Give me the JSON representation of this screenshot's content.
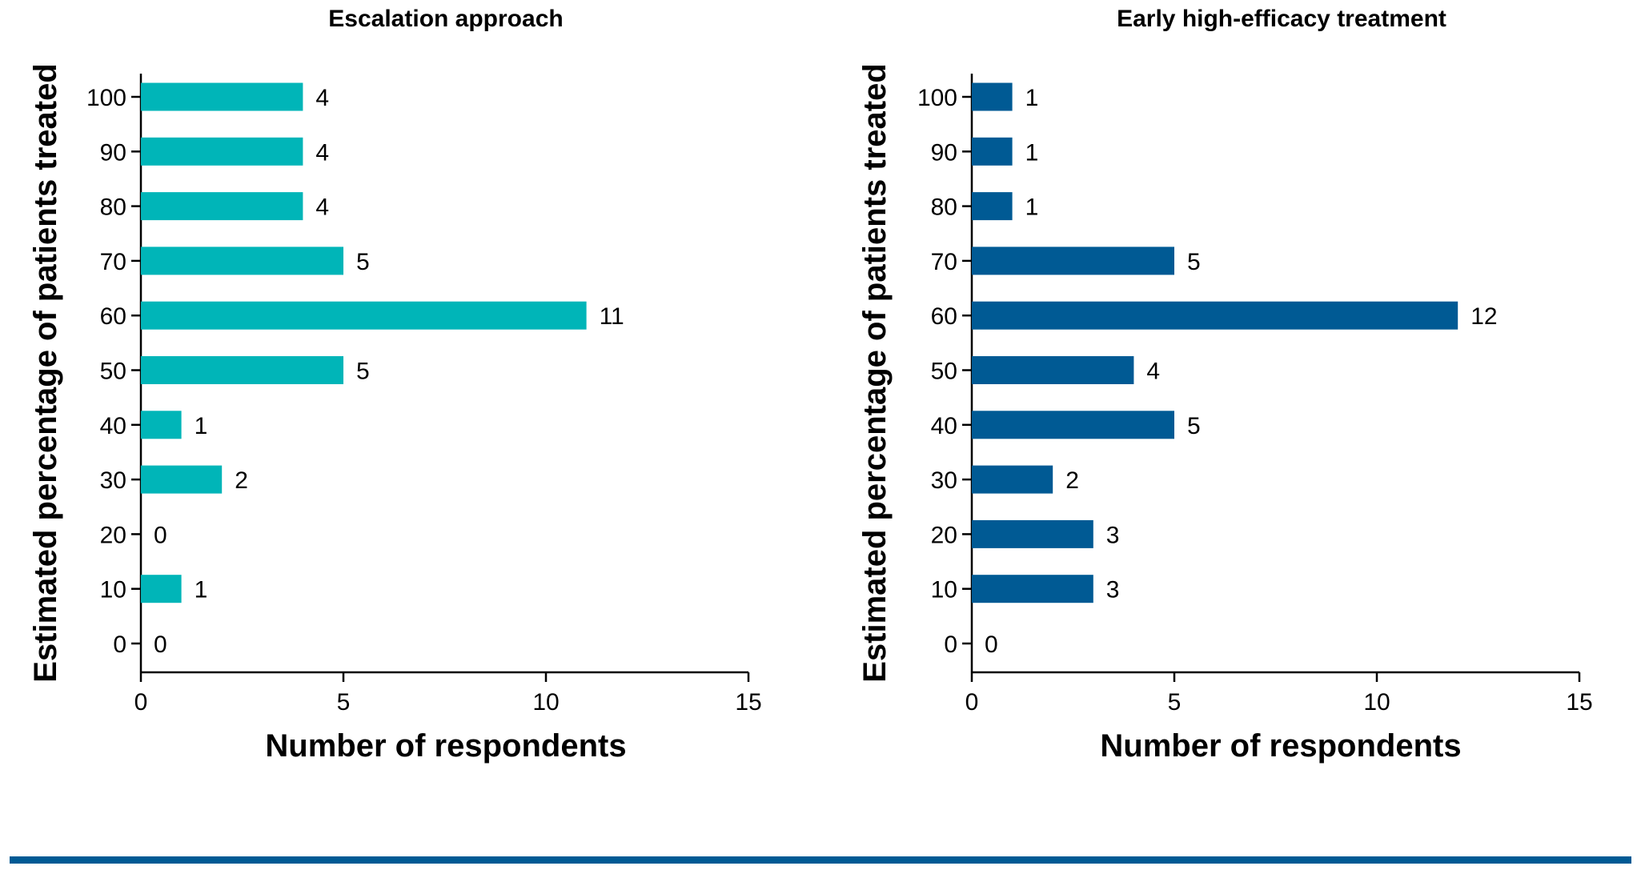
{
  "chart_data": [
    {
      "type": "bar",
      "orientation": "horizontal",
      "title": "Escalation approach",
      "xlabel": "Number of respondents",
      "ylabel": "Estimated percentage of patients treated",
      "categories": [
        "0",
        "10",
        "20",
        "30",
        "40",
        "50",
        "60",
        "70",
        "80",
        "90",
        "100"
      ],
      "values": [
        0,
        1,
        0,
        2,
        1,
        5,
        11,
        5,
        4,
        4,
        4
      ],
      "xlim": [
        0,
        15
      ],
      "xticks": [
        "0",
        "5",
        "10",
        "15"
      ],
      "color": "#00B5B8",
      "grid": false
    },
    {
      "type": "bar",
      "orientation": "horizontal",
      "title": "Early high-efficacy treatment",
      "xlabel": "Number of respondents",
      "ylabel": "Estimated percentage of patients treated",
      "categories": [
        "0",
        "10",
        "20",
        "30",
        "40",
        "50",
        "60",
        "70",
        "80",
        "90",
        "100"
      ],
      "values": [
        0,
        3,
        3,
        2,
        5,
        4,
        12,
        5,
        1,
        1,
        1
      ],
      "xlim": [
        0,
        15
      ],
      "xticks": [
        "0",
        "5",
        "10",
        "15"
      ],
      "color": "#005A94",
      "grid": false
    }
  ],
  "footer": {
    "rule_color": "#005A94"
  }
}
